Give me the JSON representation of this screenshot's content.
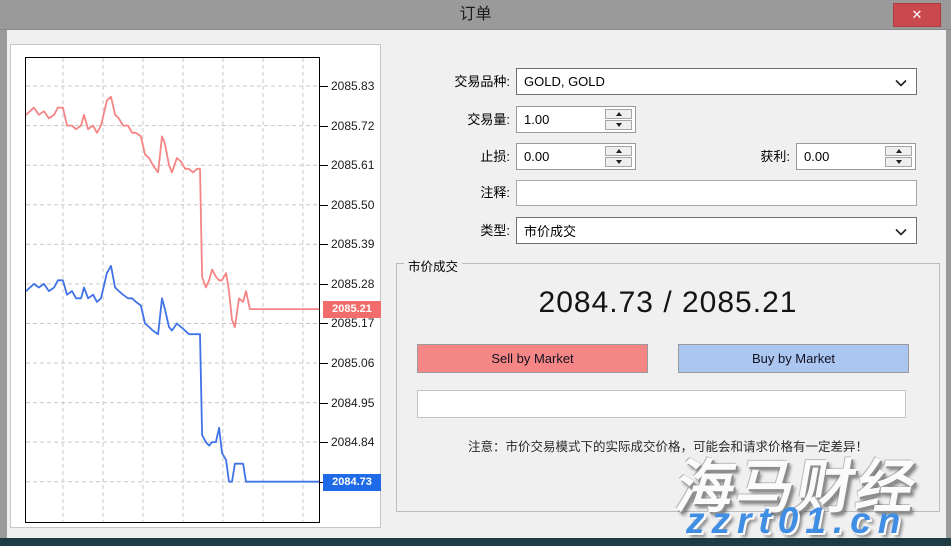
{
  "window": {
    "title": "订单",
    "close_glyph": "✕"
  },
  "form": {
    "symbol_label": "交易品种:",
    "symbol_value": "GOLD, GOLD",
    "volume_label": "交易量:",
    "volume_value": "1.00",
    "stop_loss_label": "止损:",
    "stop_loss_value": "0.00",
    "take_profit_label": "获利:",
    "take_profit_value": "0.00",
    "comment_label": "注释:",
    "comment_value": "",
    "type_label": "类型:",
    "type_value": "市价成交"
  },
  "execution": {
    "group_title": "市价成交",
    "quote": "2084.73 / 2085.21",
    "sell_label": "Sell by Market",
    "buy_label": "Buy by Market",
    "note": "注意：市价交易模式下的实际成交价格，可能会和请求价格有一定差异！"
  },
  "watermark": {
    "brand": "海马财经",
    "site": "zzrt01.cn"
  },
  "colors": {
    "titlebar_bg": "#9a9a9a",
    "close_bg": "#c9494f",
    "ask": "#f26c6c",
    "bid": "#1f6ae6",
    "sell_bg": "#f58686",
    "buy_bg": "#abc7f1",
    "watermark_blue": "#3f8ee4",
    "bottom_strip": "#1d3b42"
  },
  "chart_data": {
    "type": "line",
    "title": "",
    "xlabel": "",
    "ylabel": "",
    "ylim": [
      2084.618,
      2085.908
    ],
    "grid": true,
    "y_ticks": [
      2085.83,
      2085.72,
      2085.61,
      2085.5,
      2085.39,
      2085.28,
      2085.17,
      2085.06,
      2084.95,
      2084.84,
      2084.73
    ],
    "x_gridlines": [
      0.126,
      0.263,
      0.399,
      0.536,
      0.672,
      0.809,
      0.945
    ],
    "ask_price": 2085.21,
    "bid_price": 2084.73,
    "series": [
      {
        "name": "ask",
        "color": "#f58585",
        "points": [
          [
            0.0,
            2085.75
          ],
          [
            0.027,
            2085.77
          ],
          [
            0.044,
            2085.75
          ],
          [
            0.061,
            2085.76
          ],
          [
            0.078,
            2085.74
          ],
          [
            0.096,
            2085.75
          ],
          [
            0.109,
            2085.77
          ],
          [
            0.126,
            2085.77
          ],
          [
            0.14,
            2085.72
          ],
          [
            0.157,
            2085.72
          ],
          [
            0.171,
            2085.71
          ],
          [
            0.188,
            2085.72
          ],
          [
            0.198,
            2085.75
          ],
          [
            0.212,
            2085.71
          ],
          [
            0.229,
            2085.72
          ],
          [
            0.242,
            2085.7
          ],
          [
            0.256,
            2085.72
          ],
          [
            0.276,
            2085.79
          ],
          [
            0.29,
            2085.8
          ],
          [
            0.304,
            2085.75
          ],
          [
            0.317,
            2085.74
          ],
          [
            0.331,
            2085.72
          ],
          [
            0.348,
            2085.72
          ],
          [
            0.362,
            2085.7
          ],
          [
            0.375,
            2085.7
          ],
          [
            0.392,
            2085.69
          ],
          [
            0.406,
            2085.64
          ],
          [
            0.42,
            2085.63
          ],
          [
            0.433,
            2085.61
          ],
          [
            0.451,
            2085.59
          ],
          [
            0.464,
            2085.69
          ],
          [
            0.474,
            2085.67
          ],
          [
            0.488,
            2085.61
          ],
          [
            0.498,
            2085.59
          ],
          [
            0.515,
            2085.63
          ],
          [
            0.529,
            2085.62
          ],
          [
            0.543,
            2085.6
          ],
          [
            0.556,
            2085.6
          ],
          [
            0.57,
            2085.59
          ],
          [
            0.584,
            2085.6
          ],
          [
            0.594,
            2085.6
          ],
          [
            0.601,
            2085.3
          ],
          [
            0.614,
            2085.27
          ],
          [
            0.625,
            2085.29
          ],
          [
            0.635,
            2085.32
          ],
          [
            0.648,
            2085.3
          ],
          [
            0.659,
            2085.29
          ],
          [
            0.669,
            2085.29
          ],
          [
            0.683,
            2085.31
          ],
          [
            0.693,
            2085.26
          ],
          [
            0.703,
            2085.18
          ],
          [
            0.713,
            2085.16
          ],
          [
            0.727,
            2085.24
          ],
          [
            0.741,
            2085.23
          ],
          [
            0.751,
            2085.26
          ],
          [
            0.764,
            2085.21
          ],
          [
            1.0,
            2085.21
          ]
        ]
      },
      {
        "name": "bid",
        "color": "#4072e8",
        "points": [
          [
            0.0,
            2085.26
          ],
          [
            0.027,
            2085.28
          ],
          [
            0.044,
            2085.27
          ],
          [
            0.061,
            2085.28
          ],
          [
            0.078,
            2085.26
          ],
          [
            0.096,
            2085.27
          ],
          [
            0.109,
            2085.29
          ],
          [
            0.126,
            2085.29
          ],
          [
            0.14,
            2085.25
          ],
          [
            0.157,
            2085.26
          ],
          [
            0.171,
            2085.24
          ],
          [
            0.188,
            2085.24
          ],
          [
            0.198,
            2085.27
          ],
          [
            0.212,
            2085.24
          ],
          [
            0.229,
            2085.25
          ],
          [
            0.242,
            2085.23
          ],
          [
            0.256,
            2085.24
          ],
          [
            0.276,
            2085.31
          ],
          [
            0.29,
            2085.33
          ],
          [
            0.304,
            2085.27
          ],
          [
            0.317,
            2085.26
          ],
          [
            0.331,
            2085.25
          ],
          [
            0.348,
            2085.24
          ],
          [
            0.362,
            2085.24
          ],
          [
            0.375,
            2085.23
          ],
          [
            0.392,
            2085.22
          ],
          [
            0.406,
            2085.17
          ],
          [
            0.42,
            2085.16
          ],
          [
            0.433,
            2085.15
          ],
          [
            0.451,
            2085.14
          ],
          [
            0.464,
            2085.24
          ],
          [
            0.474,
            2085.21
          ],
          [
            0.488,
            2085.16
          ],
          [
            0.498,
            2085.15
          ],
          [
            0.515,
            2085.17
          ],
          [
            0.529,
            2085.16
          ],
          [
            0.543,
            2085.15
          ],
          [
            0.556,
            2085.14
          ],
          [
            0.57,
            2085.14
          ],
          [
            0.584,
            2085.14
          ],
          [
            0.594,
            2085.14
          ],
          [
            0.601,
            2084.86
          ],
          [
            0.614,
            2084.84
          ],
          [
            0.625,
            2084.83
          ],
          [
            0.635,
            2084.84
          ],
          [
            0.648,
            2084.84
          ],
          [
            0.659,
            2084.88
          ],
          [
            0.669,
            2084.81
          ],
          [
            0.683,
            2084.79
          ],
          [
            0.693,
            2084.73
          ],
          [
            0.703,
            2084.73
          ],
          [
            0.713,
            2084.78
          ],
          [
            0.727,
            2084.78
          ],
          [
            0.741,
            2084.78
          ],
          [
            0.751,
            2084.73
          ],
          [
            1.0,
            2084.73
          ]
        ]
      }
    ]
  }
}
